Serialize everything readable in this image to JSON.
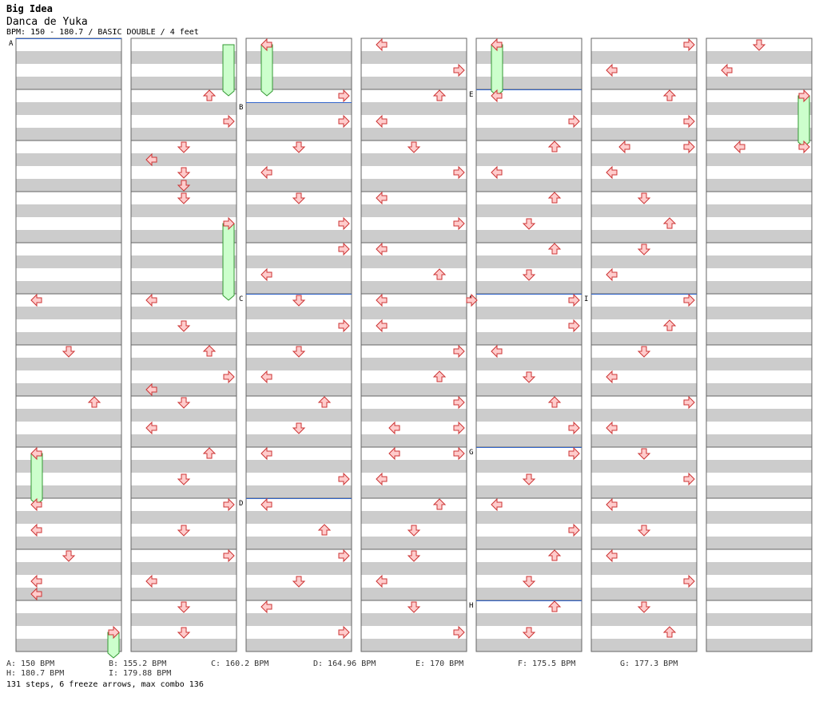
{
  "song": {
    "title": "Big Idea",
    "artist": "Danca de Yuka",
    "info": "BPM: 150 - 180.7 / BASIC DOUBLE / 4 feet"
  },
  "colors": {
    "stripe_gray": "#cccccc",
    "stripe_white": "#ffffff",
    "arrow_fill": "#ffcccc",
    "arrow_stroke": "#cc3333",
    "freeze_fill": "#ccffcc",
    "freeze_stroke": "#339933",
    "bpm_line": "#3366cc"
  },
  "bpm_changes": [
    {
      "label": "A",
      "bpm_text": "A: 150 BPM",
      "column": 1,
      "row": 0
    },
    {
      "label": "B",
      "bpm_text": "B: 155.2 BPM",
      "column": 3,
      "row": 5
    },
    {
      "label": "C",
      "bpm_text": "C: 160.2 BPM",
      "column": 3,
      "row": 20
    },
    {
      "label": "D",
      "bpm_text": "D: 164.96 BPM",
      "column": 3,
      "row": 36
    },
    {
      "label": "E",
      "bpm_text": "E: 170 BPM",
      "column": 5,
      "row": 4
    },
    {
      "label": "F",
      "bpm_text": "F: 175.5 BPM",
      "column": 5,
      "row": 20
    },
    {
      "label": "G",
      "bpm_text": "G: 177.3 BPM",
      "column": 5,
      "row": 32
    },
    {
      "label": "H",
      "bpm_text": "H: 180.7 BPM",
      "column": 5,
      "row": 44
    },
    {
      "label": "I",
      "bpm_text": "I: 179.88 BPM",
      "column": 6,
      "row": 20
    }
  ],
  "stats": "131 steps, 6 freeze arrows, max combo 136",
  "arrows": [
    [
      1,
      20,
      "L"
    ],
    [
      1,
      24,
      "D"
    ],
    [
      1,
      28,
      "U"
    ],
    [
      1,
      32,
      "L"
    ],
    [
      1,
      36,
      "L"
    ],
    [
      1,
      38,
      "L"
    ],
    [
      1,
      40,
      "D"
    ],
    [
      1,
      42,
      "L"
    ],
    [
      1,
      43,
      "L"
    ],
    [
      1,
      46,
      "R"
    ],
    [
      2,
      4,
      "U"
    ],
    [
      2,
      6,
      "R"
    ],
    [
      2,
      8,
      "D"
    ],
    [
      2,
      9,
      "L"
    ],
    [
      2,
      10,
      "D"
    ],
    [
      2,
      11,
      "D"
    ],
    [
      2,
      12,
      "D"
    ],
    [
      2,
      14,
      "R"
    ],
    [
      2,
      20,
      "L"
    ],
    [
      2,
      22,
      "D"
    ],
    [
      2,
      24,
      "U"
    ],
    [
      2,
      26,
      "R"
    ],
    [
      2,
      27,
      "L"
    ],
    [
      2,
      28,
      "D"
    ],
    [
      2,
      30,
      "L"
    ],
    [
      2,
      32,
      "U"
    ],
    [
      2,
      34,
      "D"
    ],
    [
      2,
      36,
      "R"
    ],
    [
      2,
      38,
      "D"
    ],
    [
      2,
      40,
      "R"
    ],
    [
      2,
      42,
      "L"
    ],
    [
      2,
      44,
      "D"
    ],
    [
      2,
      46,
      "D"
    ],
    [
      3,
      0,
      "L"
    ],
    [
      3,
      4,
      "R"
    ],
    [
      3,
      6,
      "R"
    ],
    [
      3,
      8,
      "D"
    ],
    [
      3,
      10,
      "L"
    ],
    [
      3,
      12,
      "D"
    ],
    [
      3,
      14,
      "R"
    ],
    [
      3,
      16,
      "R"
    ],
    [
      3,
      18,
      "L"
    ],
    [
      3,
      20,
      "D"
    ],
    [
      3,
      22,
      "R"
    ],
    [
      3,
      24,
      "D"
    ],
    [
      3,
      26,
      "L"
    ],
    [
      3,
      28,
      "U"
    ],
    [
      3,
      30,
      "D"
    ],
    [
      3,
      32,
      "L"
    ],
    [
      3,
      34,
      "R"
    ],
    [
      3,
      36,
      "L"
    ],
    [
      3,
      38,
      "U"
    ],
    [
      3,
      40,
      "R"
    ],
    [
      3,
      42,
      "D"
    ],
    [
      3,
      44,
      "L"
    ],
    [
      3,
      46,
      "R"
    ],
    [
      4,
      0,
      "L"
    ],
    [
      4,
      2,
      "R"
    ],
    [
      4,
      4,
      "U"
    ],
    [
      4,
      6,
      "L"
    ],
    [
      4,
      8,
      "D"
    ],
    [
      4,
      10,
      "R"
    ],
    [
      4,
      12,
      "L"
    ],
    [
      4,
      14,
      "R"
    ],
    [
      4,
      16,
      "L"
    ],
    [
      4,
      18,
      "U"
    ],
    [
      4,
      20,
      "L"
    ],
    [
      4,
      20.01,
      "R"
    ],
    [
      4,
      22,
      "L"
    ],
    [
      4,
      24,
      "R"
    ],
    [
      4,
      26,
      "U"
    ],
    [
      4,
      28,
      "R"
    ],
    [
      4,
      30,
      "R"
    ],
    [
      4,
      30.01,
      "L"
    ],
    [
      4,
      32,
      "R"
    ],
    [
      4,
      32.01,
      "L"
    ],
    [
      4,
      34,
      "L"
    ],
    [
      4,
      36,
      "U"
    ],
    [
      4,
      38,
      "D"
    ],
    [
      4,
      40,
      "D"
    ],
    [
      4,
      42,
      "L"
    ],
    [
      4,
      44,
      "D"
    ],
    [
      4,
      46,
      "R"
    ],
    [
      5,
      0,
      "L"
    ],
    [
      5,
      4,
      "L"
    ],
    [
      5,
      6,
      "R"
    ],
    [
      5,
      8,
      "U"
    ],
    [
      5,
      10,
      "L"
    ],
    [
      5,
      12,
      "U"
    ],
    [
      5,
      14,
      "D"
    ],
    [
      5,
      16,
      "U"
    ],
    [
      5,
      18,
      "D"
    ],
    [
      5,
      20,
      "R"
    ],
    [
      5,
      22,
      "R"
    ],
    [
      5,
      24,
      "L"
    ],
    [
      5,
      26,
      "D"
    ],
    [
      5,
      28,
      "U"
    ],
    [
      5,
      30,
      "R"
    ],
    [
      5,
      32,
      "R"
    ],
    [
      5,
      34,
      "D"
    ],
    [
      5,
      36,
      "L"
    ],
    [
      5,
      38,
      "R"
    ],
    [
      5,
      40,
      "U"
    ],
    [
      5,
      42,
      "D"
    ],
    [
      5,
      44,
      "U"
    ],
    [
      5,
      46,
      "D"
    ],
    [
      6,
      0,
      "R"
    ],
    [
      6,
      2,
      "L"
    ],
    [
      6,
      4,
      "U"
    ],
    [
      6,
      6,
      "R"
    ],
    [
      6,
      8,
      "R"
    ],
    [
      6,
      8.01,
      "L"
    ],
    [
      6,
      10,
      "L"
    ],
    [
      6,
      12,
      "D"
    ],
    [
      6,
      14,
      "U"
    ],
    [
      6,
      16,
      "D"
    ],
    [
      6,
      18,
      "L"
    ],
    [
      6,
      20,
      "R"
    ],
    [
      6,
      22,
      "U"
    ],
    [
      6,
      24,
      "D"
    ],
    [
      6,
      26,
      "L"
    ],
    [
      6,
      28,
      "R"
    ],
    [
      6,
      30,
      "L"
    ],
    [
      6,
      32,
      "D"
    ],
    [
      6,
      34,
      "R"
    ],
    [
      6,
      36,
      "L"
    ],
    [
      6,
      38,
      "D"
    ],
    [
      6,
      40,
      "L"
    ],
    [
      6,
      42,
      "R"
    ],
    [
      6,
      44,
      "D"
    ],
    [
      6,
      46,
      "U"
    ],
    [
      7,
      0,
      "D"
    ],
    [
      7,
      2,
      "L"
    ],
    [
      7,
      4,
      "R"
    ],
    [
      7,
      8,
      "R"
    ],
    [
      7,
      8.01,
      "L"
    ]
  ],
  "freezes": [
    [
      1,
      32,
      36,
      "L"
    ],
    [
      1,
      46,
      48,
      "R"
    ],
    [
      2,
      0,
      4,
      "R"
    ],
    [
      2,
      14,
      20,
      "R"
    ],
    [
      3,
      0,
      4,
      "L"
    ],
    [
      5,
      0,
      4,
      "L"
    ],
    [
      7,
      4,
      8,
      "R"
    ]
  ]
}
